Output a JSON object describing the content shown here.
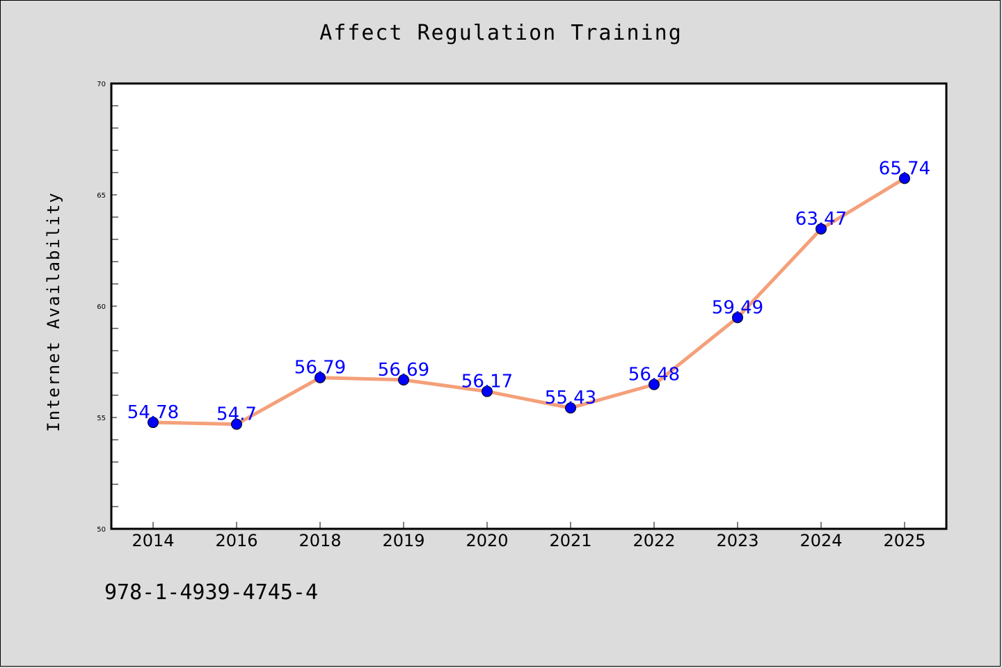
{
  "chart_data": {
    "type": "line",
    "title": "Affect Regulation Training",
    "xlabel": "",
    "ylabel": "Internet Availability",
    "categories": [
      "2014",
      "2016",
      "2018",
      "2019",
      "2020",
      "2021",
      "2022",
      "2023",
      "2024",
      "2025"
    ],
    "series": [
      {
        "values": [
          54.78,
          54.7,
          56.79,
          56.69,
          56.17,
          55.43,
          56.48,
          59.49,
          63.47,
          65.74
        ]
      }
    ],
    "value_labels": [
      "54.78",
      "54.7",
      "56.79",
      "56.69",
      "56.17",
      "55.43",
      "56.48",
      "59.49",
      "63.47",
      "65.74"
    ],
    "ylim": [
      50,
      70
    ],
    "yticks": [
      "50",
      "55",
      "60",
      "65",
      "70"
    ],
    "grid": false,
    "colors": {
      "line": "#f4a07a",
      "marker": "#0000ff",
      "label": "#0000ff",
      "background": "#dcdcdc",
      "plot_background": "#ffffff"
    }
  },
  "footer_text": "978-1-4939-4745-4"
}
